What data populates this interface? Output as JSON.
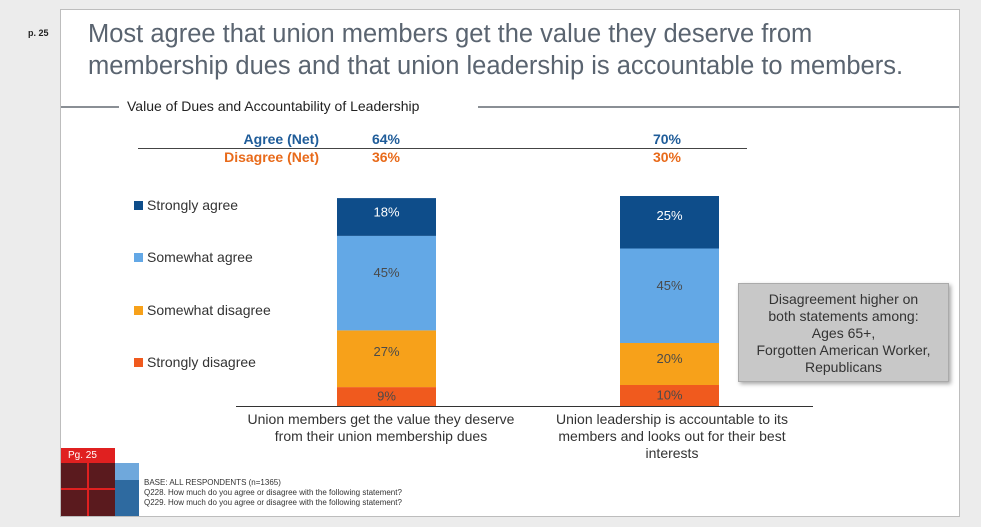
{
  "page_label": "p. 25",
  "title": "Most agree that union members get the value they deserve from membership dues and that union leadership is accountable to members.",
  "subtitle": "Value of Dues and Accountability of Leadership",
  "net": {
    "agree_label": "Agree (Net)",
    "disagree_label": "Disagree (Net)",
    "agree_values": [
      "64%",
      "70%"
    ],
    "disagree_values": [
      "36%",
      "30%"
    ]
  },
  "colors": {
    "strongly_agree": "#0e4d8a",
    "somewhat_agree": "#63a8e6",
    "somewhat_disagree": "#f7a11a",
    "strongly_disagree": "#f05a1e",
    "agree_text": "#1f5c99",
    "disagree_text": "#e86a1a"
  },
  "chart_data": {
    "type": "bar",
    "stacked": true,
    "orientation": "vertical",
    "title": "Value of Dues and Accountability of Leadership",
    "categories": [
      "Union members get the value they deserve from their union membership dues",
      "Union leadership is accountable to its members and looks out for their best interests"
    ],
    "category_labels": [
      [
        "Union members get the value they deserve",
        "from their union membership dues"
      ],
      [
        "Union leadership is accountable to its",
        "members and looks out for their best",
        "interests"
      ]
    ],
    "series": [
      {
        "name": "Strongly disagree",
        "values": [
          9,
          10
        ],
        "labels": [
          "9%",
          "10%"
        ]
      },
      {
        "name": "Somewhat disagree",
        "values": [
          27,
          20
        ],
        "labels": [
          "27%",
          "20%"
        ]
      },
      {
        "name": "Somewhat agree",
        "values": [
          45,
          45
        ],
        "labels": [
          "45%",
          "45%"
        ]
      },
      {
        "name": "Strongly agree",
        "values": [
          18,
          25
        ],
        "labels": [
          "18%",
          "25%"
        ]
      }
    ],
    "legend": [
      "Strongly agree",
      "Somewhat agree",
      "Somewhat disagree",
      "Strongly disagree"
    ],
    "ylim": [
      0,
      100
    ],
    "xlabel": "",
    "ylabel": ""
  },
  "callout": {
    "lines": [
      "Disagreement higher on",
      "both statements among:",
      "Ages 65+,",
      "Forgotten American Worker,",
      "Republicans"
    ]
  },
  "footer": {
    "base": "BASE: ALL RESPONDENTS (n=1365)",
    "q1": "Q228. How much do you agree or disagree with the following statement?",
    "q2": "Q229. How much do you agree or disagree with the following statement?"
  },
  "pg_badge": "Pg. 25"
}
